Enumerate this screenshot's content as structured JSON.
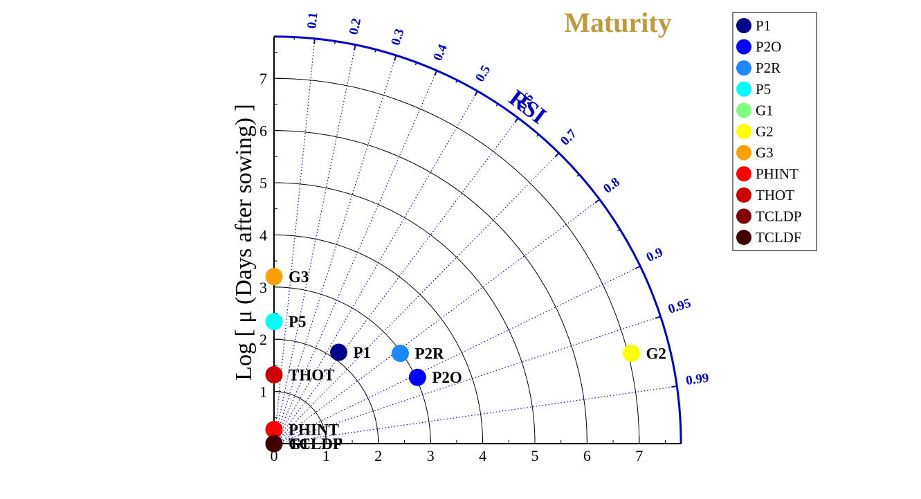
{
  "chart_data": {
    "type": "scatter",
    "title": "Maturity",
    "ylabel": "Log [ μ (Days after sowing) ]",
    "arc_label": "RSI",
    "radial_max": 7.8,
    "radial_ticks": [
      0,
      1,
      2,
      3,
      4,
      5,
      6,
      7
    ],
    "correlation_ticks": [
      "0.1",
      "0.2",
      "0.3",
      "0.4",
      "0.5",
      "0.6",
      "0.7",
      "0.8",
      "0.9",
      "0.95",
      "0.99"
    ],
    "grid": true,
    "legend_position": "top-right",
    "points": [
      {
        "name": "P1",
        "x": 1.24,
        "y": 1.75,
        "color": "#00008b"
      },
      {
        "name": "P2O",
        "x": 2.75,
        "y": 1.27,
        "color": "#0000ff"
      },
      {
        "name": "P2R",
        "x": 2.42,
        "y": 1.73,
        "color": "#1e88ff"
      },
      {
        "name": "P5",
        "x": 0.0,
        "y": 2.34,
        "color": "#00ffff"
      },
      {
        "name": "G1",
        "x": 0.0,
        "y": 0.0,
        "color": "#80ff80"
      },
      {
        "name": "G2",
        "x": 6.85,
        "y": 1.73,
        "color": "#ffff00"
      },
      {
        "name": "G3",
        "x": 0.0,
        "y": 3.2,
        "color": "#ffa000"
      },
      {
        "name": "PHINT",
        "x": 0.0,
        "y": 0.27,
        "color": "#ff0000"
      },
      {
        "name": "THOT",
        "x": 0.0,
        "y": 1.32,
        "color": "#cc0000"
      },
      {
        "name": "TCLDP",
        "x": 0.0,
        "y": 0.0,
        "color": "#800000"
      },
      {
        "name": "TCLDF",
        "x": 0.0,
        "y": 0.0,
        "color": "#400000"
      }
    ]
  }
}
